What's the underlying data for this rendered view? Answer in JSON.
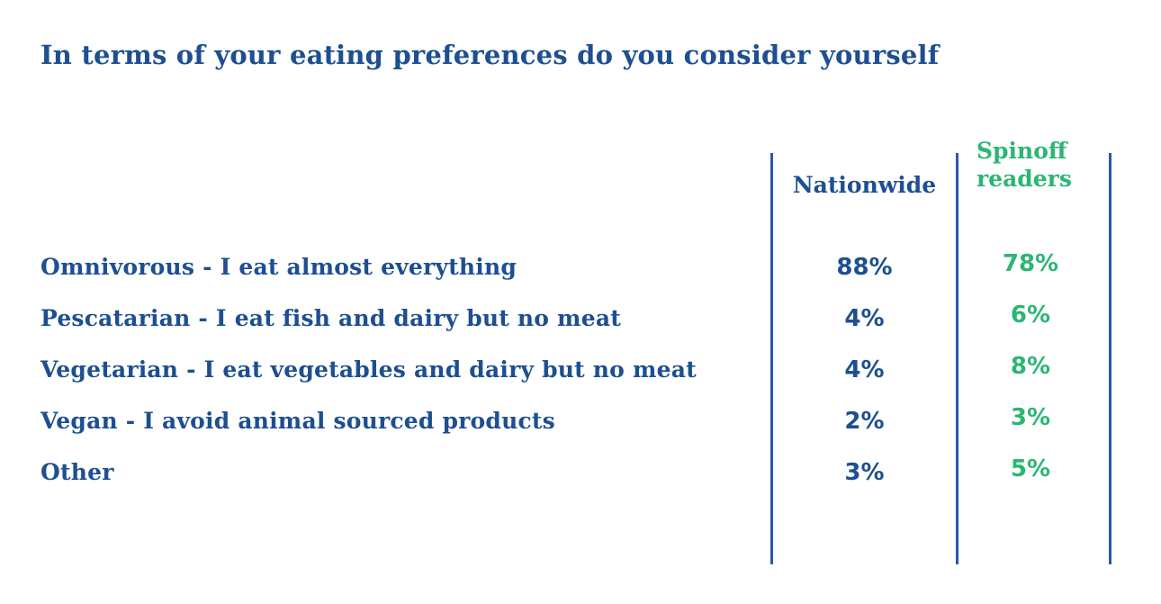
{
  "colors": {
    "background": "#ffffff",
    "text_blue": "#1d4f91",
    "accent_green": "#2bb673",
    "divider_blue": "#2b58a8"
  },
  "title": "In terms of your eating preferences do you consider yourself",
  "table": {
    "columns": [
      {
        "label": "Nationwide",
        "color": "#1d4f91"
      },
      {
        "label": "Spinoff readers",
        "color": "#2bb673"
      }
    ],
    "rows": [
      {
        "label": "Omnivorous - I eat almost everything",
        "nationwide": "88%",
        "spinoff": "78%"
      },
      {
        "label": "Pescatarian - I eat fish and dairy but no meat",
        "nationwide": "4%",
        "spinoff": "6%"
      },
      {
        "label": "Vegetarian - I eat vegetables and dairy but no meat",
        "nationwide": "4%",
        "spinoff": "8%"
      },
      {
        "label": "Vegan - I avoid animal sourced products",
        "nationwide": "2%",
        "spinoff": "3%"
      },
      {
        "label": "Other",
        "nationwide": "3%",
        "spinoff": "5%"
      }
    ]
  },
  "chart_data": {
    "type": "table",
    "title": "In terms of your eating preferences do you consider yourself",
    "categories": [
      "Omnivorous - I eat almost everything",
      "Pescatarian - I eat fish and dairy but no meat",
      "Vegetarian - I eat vegetables and dairy but no meat",
      "Vegan - I avoid animal sourced products",
      "Other"
    ],
    "series": [
      {
        "name": "Nationwide",
        "values": [
          88,
          4,
          4,
          2,
          3
        ]
      },
      {
        "name": "Spinoff readers",
        "values": [
          78,
          6,
          8,
          3,
          5
        ]
      }
    ],
    "unit": "%",
    "legend_position": "column-headers",
    "grid": false
  }
}
